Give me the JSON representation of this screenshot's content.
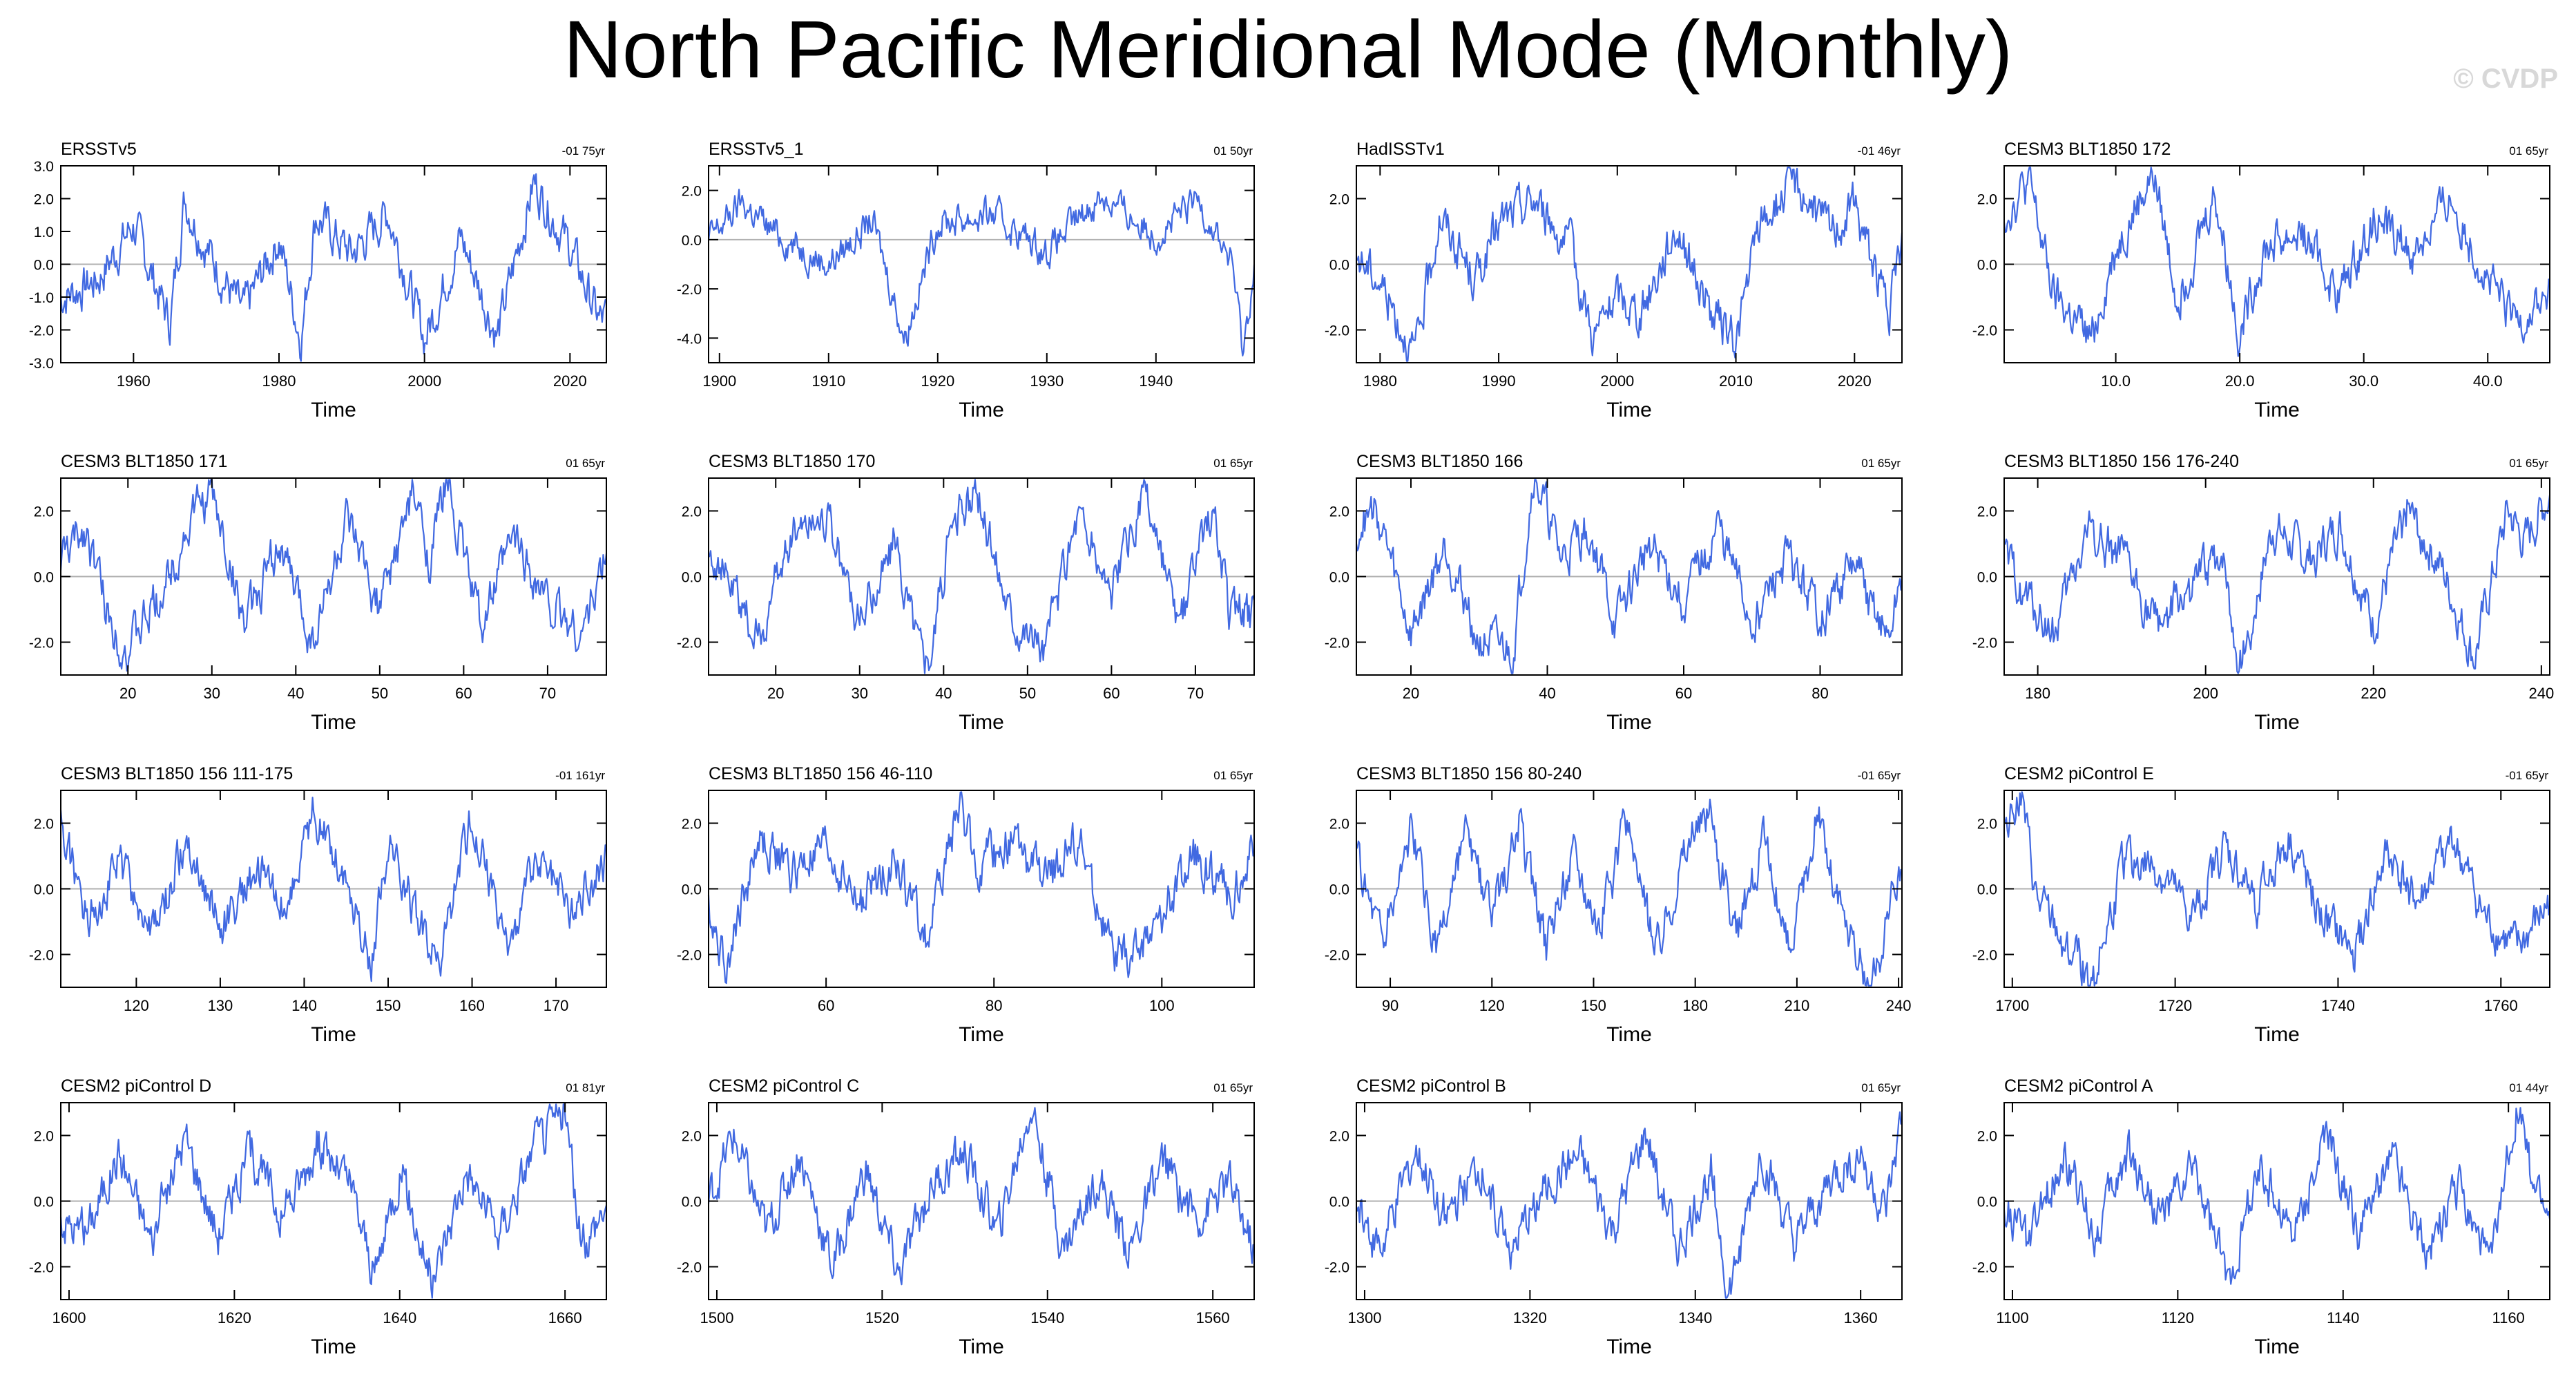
{
  "page": {
    "title": "North Pacific Meridional Mode (Monthly)",
    "watermark": "© CVDP"
  },
  "colors": {
    "series": "#4169e1",
    "axis": "#000000",
    "zero_line": "#b0b0b0"
  },
  "chart_data": [
    {
      "type": "line",
      "title": "ERSSTv5",
      "trend": "-01 75yr",
      "xlabel": "Time",
      "xlim": [
        1950,
        2025
      ],
      "ylim": [
        -3,
        3
      ],
      "xticks": [
        1960,
        1980,
        2000,
        2020
      ],
      "yticks": [
        -3,
        -2,
        -1,
        0,
        1,
        2,
        3
      ],
      "ytick_labels": [
        "-3.0",
        "-2.0",
        "-1.0",
        "0.0",
        "1.0",
        "2.0",
        "3.0"
      ],
      "series": [
        {
          "x": [
            1950,
            1955,
            1960,
            1965,
            1967,
            1970,
            1975,
            1980,
            1983,
            1985,
            1990,
            1995,
            2000,
            2005,
            2010,
            2015,
            2020,
            2024
          ],
          "y": [
            -1.0,
            -0.5,
            1.2,
            -1.8,
            2.0,
            0.5,
            -1.5,
            0.8,
            -2.3,
            1.5,
            0.3,
            1.6,
            -2.3,
            0.8,
            -2.2,
            2.5,
            0.5,
            -1.7
          ]
        }
      ]
    },
    {
      "type": "line",
      "title": "ERSSTv5_1",
      "trend": "01 50yr",
      "xlabel": "Time",
      "xlim": [
        1899,
        1949
      ],
      "ylim": [
        -5,
        3
      ],
      "xticks": [
        1900,
        1910,
        1920,
        1930,
        1940
      ],
      "yticks": [
        -4,
        -2,
        0,
        2
      ],
      "ytick_labels": [
        "-4.0",
        "-2.0",
        "0.0",
        "2.0"
      ],
      "series": [
        {
          "x": [
            1899,
            1902,
            1905,
            1910,
            1914,
            1917,
            1920,
            1925,
            1930,
            1935,
            1940,
            1944,
            1947,
            1948,
            1949
          ],
          "y": [
            0.0,
            1.5,
            0.3,
            -1.0,
            0.8,
            -4.0,
            0.7,
            1.0,
            -0.5,
            1.8,
            0.2,
            1.6,
            -1.0,
            -4.6,
            -1.0
          ]
        }
      ]
    },
    {
      "type": "line",
      "title": "HadISSTv1",
      "trend": "-01 46yr",
      "xlabel": "Time",
      "xlim": [
        1978,
        2024
      ],
      "ylim": [
        -3,
        3
      ],
      "xticks": [
        1980,
        1990,
        2000,
        2010,
        2020
      ],
      "yticks": [
        -2,
        0,
        2
      ],
      "ytick_labels": [
        "-2.0",
        "0.0",
        "2.0"
      ],
      "series": [
        {
          "x": [
            1978,
            1980,
            1983,
            1985,
            1988,
            1990,
            1993,
            1996,
            1998,
            2000,
            2002,
            2005,
            2008,
            2010,
            2012,
            2015,
            2018,
            2020,
            2023,
            2024
          ],
          "y": [
            0.3,
            -0.5,
            -2.8,
            1.5,
            -0.5,
            1.2,
            2.0,
            0.5,
            -2.2,
            -1.0,
            -1.5,
            1.2,
            -1.6,
            -2.3,
            1.2,
            2.5,
            1.0,
            1.8,
            -1.5,
            0.8
          ]
        }
      ]
    },
    {
      "type": "line",
      "title": "CESM3 BLT1850 172",
      "trend": "01 65yr",
      "xlabel": "Time",
      "xlim": [
        1,
        45
      ],
      "ylim": [
        -3,
        3
      ],
      "xticks": [
        10,
        20,
        30,
        40
      ],
      "xtick_labels": [
        "10.0",
        "20.0",
        "30.0",
        "40.0"
      ],
      "yticks": [
        -2,
        0,
        2
      ],
      "ytick_labels": [
        "-2.0",
        "0.0",
        "2.0"
      ],
      "series": [
        {
          "x": [
            1,
            3,
            5,
            8,
            10,
            13,
            15,
            18,
            20,
            22,
            25,
            28,
            31,
            34,
            37,
            40,
            42,
            45
          ],
          "y": [
            1.5,
            2.5,
            -1.0,
            -2.3,
            0.5,
            2.8,
            -1.0,
            2.2,
            -2.2,
            0.5,
            1.0,
            -1.0,
            1.5,
            0.3,
            2.0,
            -0.5,
            -1.8,
            -1.0
          ]
        }
      ]
    },
    {
      "type": "line",
      "title": "CESM3 BLT1850 171",
      "trend": "01 65yr",
      "xlabel": "Time",
      "xlim": [
        12,
        77
      ],
      "ylim": [
        -3,
        3
      ],
      "xticks": [
        20,
        30,
        40,
        50,
        60,
        70
      ],
      "yticks": [
        -2,
        0,
        2
      ],
      "ytick_labels": [
        "-2.0",
        "0.0",
        "2.0"
      ],
      "series": [
        {
          "x": [
            12,
            15,
            18,
            20,
            24,
            28,
            30,
            34,
            38,
            42,
            46,
            50,
            54,
            56,
            58,
            62,
            66,
            70,
            74,
            77
          ],
          "y": [
            0.5,
            1.5,
            -1.5,
            -2.3,
            -0.5,
            2.0,
            2.5,
            -1.5,
            1.0,
            -2.0,
            1.5,
            -1.0,
            2.5,
            0.5,
            3.0,
            -1.5,
            1.2,
            -0.8,
            -1.8,
            0.6
          ]
        }
      ]
    },
    {
      "type": "line",
      "title": "CESM3 BLT1850 170",
      "trend": "01 65yr",
      "xlabel": "Time",
      "xlim": [
        12,
        77
      ],
      "ylim": [
        -3,
        3
      ],
      "xticks": [
        20,
        30,
        40,
        50,
        60,
        70
      ],
      "yticks": [
        -2,
        0,
        2
      ],
      "ytick_labels": [
        "-2.0",
        "0.0",
        "2.0"
      ],
      "series": [
        {
          "x": [
            12,
            15,
            18,
            22,
            26,
            30,
            34,
            38,
            41,
            44,
            48,
            52,
            56,
            60,
            64,
            68,
            72,
            74,
            77
          ],
          "y": [
            1.0,
            -0.5,
            -2.0,
            1.5,
            2.0,
            -1.5,
            1.0,
            -2.8,
            1.5,
            2.5,
            -1.0,
            -2.2,
            2.0,
            -0.5,
            2.5,
            -1.8,
            2.2,
            -1.0,
            -1.2
          ]
        }
      ]
    },
    {
      "type": "line",
      "title": "CESM3 BLT1850 166",
      "trend": "01 65yr",
      "xlabel": "Time",
      "xlim": [
        12,
        92
      ],
      "ylim": [
        -3,
        3
      ],
      "xticks": [
        20,
        40,
        60,
        80
      ],
      "yticks": [
        -2,
        0,
        2
      ],
      "ytick_labels": [
        "-2.0",
        "0.0",
        "2.0"
      ],
      "series": [
        {
          "x": [
            12,
            15,
            20,
            25,
            30,
            35,
            38,
            42,
            46,
            50,
            55,
            60,
            65,
            70,
            75,
            80,
            85,
            90,
            92
          ],
          "y": [
            1.5,
            2.0,
            -1.8,
            1.0,
            -2.0,
            -2.3,
            3.2,
            0.5,
            1.5,
            -1.5,
            1.0,
            -0.8,
            1.5,
            -1.5,
            0.5,
            -1.2,
            0.3,
            -2.0,
            0.0
          ]
        }
      ]
    },
    {
      "type": "line",
      "title": "CESM3 BLT1850 156 176-240",
      "trend": "01 65yr",
      "xlabel": "Time",
      "xlim": [
        176,
        241
      ],
      "ylim": [
        -3,
        3
      ],
      "xticks": [
        180,
        200,
        220,
        240
      ],
      "yticks": [
        -2,
        0,
        2
      ],
      "ytick_labels": [
        "-2.0",
        "0.0",
        "2.0"
      ],
      "series": [
        {
          "x": [
            176,
            179,
            182,
            186,
            190,
            194,
            198,
            202,
            204,
            208,
            212,
            216,
            220,
            224,
            228,
            232,
            236,
            238,
            241
          ],
          "y": [
            0.5,
            -0.8,
            -1.8,
            1.5,
            0.5,
            -1.5,
            -0.5,
            0.8,
            -3.0,
            1.5,
            0.5,
            1.5,
            -1.5,
            2.0,
            0.3,
            -2.5,
            2.0,
            1.0,
            2.5
          ]
        }
      ]
    },
    {
      "type": "line",
      "title": "CESM3 BLT1850 156 111-175",
      "trend": "-01 161yr",
      "xlabel": "Time",
      "xlim": [
        111,
        176
      ],
      "ylim": [
        -3,
        3
      ],
      "xticks": [
        120,
        130,
        140,
        150,
        160,
        170
      ],
      "yticks": [
        -2,
        0,
        2
      ],
      "ytick_labels": [
        "-2.0",
        "0.0",
        "2.0"
      ],
      "series": [
        {
          "x": [
            111,
            114,
            118,
            122,
            126,
            130,
            134,
            138,
            141,
            144,
            148,
            150,
            153,
            156,
            160,
            164,
            168,
            172,
            176
          ],
          "y": [
            2.0,
            -0.8,
            0.8,
            -1.5,
            1.5,
            -1.2,
            0.5,
            -0.5,
            2.3,
            1.0,
            -2.2,
            1.5,
            -0.5,
            -2.5,
            2.2,
            -1.8,
            1.0,
            -0.5,
            0.8
          ]
        }
      ]
    },
    {
      "type": "line",
      "title": "CESM3 BLT1850 156 46-110",
      "trend": "01 65yr",
      "xlabel": "Time",
      "xlim": [
        46,
        111
      ],
      "ylim": [
        -3,
        3
      ],
      "xticks": [
        60,
        80,
        100
      ],
      "yticks": [
        -2,
        0,
        2
      ],
      "ytick_labels": [
        "-2.0",
        "0.0",
        "2.0"
      ],
      "series": [
        {
          "x": [
            46,
            48,
            52,
            56,
            60,
            64,
            68,
            72,
            76,
            78,
            82,
            86,
            90,
            94,
            96,
            100,
            104,
            108,
            111
          ],
          "y": [
            -0.5,
            -2.3,
            1.5,
            0.5,
            1.2,
            -0.5,
            1.0,
            -1.5,
            2.7,
            0.5,
            1.5,
            0.2,
            1.5,
            -2.0,
            -2.3,
            -0.8,
            1.0,
            -0.2,
            1.0
          ]
        }
      ]
    },
    {
      "type": "line",
      "title": "CESM3 BLT1850 156 80-240",
      "trend": "-01 65yr",
      "xlabel": "Time",
      "xlim": [
        80,
        241
      ],
      "ylim": [
        -3,
        3
      ],
      "xticks": [
        90,
        120,
        150,
        180,
        210,
        240
      ],
      "yticks": [
        -2,
        0,
        2
      ],
      "ytick_labels": [
        "-2.0",
        "0.0",
        "2.0"
      ],
      "series": [
        {
          "x": [
            80,
            88,
            96,
            104,
            112,
            120,
            128,
            136,
            144,
            152,
            160,
            168,
            176,
            184,
            192,
            200,
            208,
            216,
            224,
            232,
            240
          ],
          "y": [
            1.0,
            -1.5,
            1.8,
            -2.0,
            1.5,
            -1.0,
            2.0,
            -1.8,
            1.2,
            -1.0,
            2.0,
            -2.0,
            1.0,
            2.5,
            -1.5,
            1.5,
            -2.0,
            2.2,
            -1.0,
            -3.2,
            0.5
          ]
        }
      ]
    },
    {
      "type": "line",
      "title": "CESM2 piControl E",
      "trend": "-01 65yr",
      "xlabel": "Time",
      "xlim": [
        1699,
        1766
      ],
      "ylim": [
        -3,
        3
      ],
      "xticks": [
        1700,
        1720,
        1740,
        1760
      ],
      "yticks": [
        -2,
        0,
        2
      ],
      "ytick_labels": [
        "-2.0",
        "0.0",
        "2.0"
      ],
      "series": [
        {
          "x": [
            1699,
            1701,
            1703,
            1706,
            1710,
            1714,
            1718,
            1722,
            1726,
            1730,
            1734,
            1738,
            1742,
            1746,
            1750,
            1754,
            1758,
            1762,
            1766
          ],
          "y": [
            2.0,
            3.0,
            -0.5,
            -1.5,
            -2.8,
            1.0,
            0.5,
            -1.0,
            1.2,
            -0.5,
            1.5,
            -1.0,
            -2.0,
            1.0,
            -0.5,
            1.5,
            -1.0,
            -2.0,
            -0.5
          ]
        }
      ]
    },
    {
      "type": "line",
      "title": "CESM2 piControl D",
      "trend": "01 81yr",
      "xlabel": "Time",
      "xlim": [
        1599,
        1665
      ],
      "ylim": [
        -3,
        3
      ],
      "xticks": [
        1600,
        1620,
        1640,
        1660
      ],
      "yticks": [
        -2,
        0,
        2
      ],
      "ytick_labels": [
        "-2.0",
        "0.0",
        "2.0"
      ],
      "series": [
        {
          "x": [
            1599,
            1602,
            1606,
            1610,
            1614,
            1618,
            1622,
            1626,
            1630,
            1634,
            1637,
            1640,
            1644,
            1648,
            1652,
            1656,
            1660,
            1662,
            1665
          ],
          "y": [
            -0.5,
            -1.0,
            1.5,
            -1.2,
            2.0,
            -1.0,
            1.5,
            -0.5,
            1.8,
            0.5,
            -2.3,
            1.0,
            -2.5,
            1.0,
            -1.0,
            1.5,
            2.8,
            -1.5,
            0.0
          ]
        }
      ]
    },
    {
      "type": "line",
      "title": "CESM2 piControl C",
      "trend": "01 65yr",
      "xlabel": "Time",
      "xlim": [
        1499,
        1565
      ],
      "ylim": [
        -3,
        3
      ],
      "xticks": [
        1500,
        1520,
        1540,
        1560
      ],
      "yticks": [
        -2,
        0,
        2
      ],
      "ytick_labels": [
        "-2.0",
        "0.0",
        "2.0"
      ],
      "series": [
        {
          "x": [
            1499,
            1502,
            1506,
            1510,
            1514,
            1518,
            1522,
            1526,
            1530,
            1534,
            1538,
            1542,
            1546,
            1550,
            1554,
            1558,
            1562,
            1565
          ],
          "y": [
            0.0,
            2.0,
            -1.0,
            1.5,
            -2.0,
            1.0,
            -2.3,
            0.5,
            1.5,
            -1.0,
            3.0,
            -1.5,
            0.8,
            -1.5,
            1.2,
            -0.5,
            0.5,
            -1.5
          ]
        }
      ]
    },
    {
      "type": "line",
      "title": "CESM2 piControl B",
      "trend": "01 65yr",
      "xlabel": "Time",
      "xlim": [
        1299,
        1365
      ],
      "ylim": [
        -3,
        3
      ],
      "xticks": [
        1300,
        1320,
        1340,
        1360
      ],
      "yticks": [
        -2,
        0,
        2
      ],
      "ytick_labels": [
        "-2.0",
        "0.0",
        "2.0"
      ],
      "series": [
        {
          "x": [
            1299,
            1302,
            1306,
            1310,
            1314,
            1318,
            1322,
            1326,
            1330,
            1334,
            1338,
            1342,
            1344,
            1348,
            1352,
            1356,
            1360,
            1363,
            1365
          ],
          "y": [
            0.0,
            -1.5,
            1.5,
            -0.5,
            1.0,
            -1.5,
            0.5,
            1.2,
            -1.0,
            2.0,
            -1.5,
            1.0,
            -3.0,
            1.5,
            -1.5,
            0.5,
            1.5,
            -0.5,
            2.5
          ]
        }
      ]
    },
    {
      "type": "line",
      "title": "CESM2 piControl A",
      "trend": "01 44yr",
      "xlabel": "Time",
      "xlim": [
        1099,
        1165
      ],
      "ylim": [
        -3,
        3
      ],
      "xticks": [
        1100,
        1120,
        1140,
        1160
      ],
      "yticks": [
        -2,
        0,
        2
      ],
      "ytick_labels": [
        "-2.0",
        "0.0",
        "2.0"
      ],
      "series": [
        {
          "x": [
            1099,
            1102,
            1106,
            1110,
            1114,
            1118,
            1122,
            1126,
            1130,
            1134,
            1138,
            1142,
            1146,
            1150,
            1154,
            1158,
            1161,
            1163,
            1165
          ],
          "y": [
            0.0,
            -1.5,
            1.5,
            -1.0,
            1.5,
            -0.5,
            1.0,
            -2.5,
            1.0,
            -1.0,
            2.0,
            -1.0,
            1.5,
            -1.5,
            0.5,
            -2.0,
            3.0,
            0.5,
            -0.5
          ]
        }
      ]
    }
  ]
}
